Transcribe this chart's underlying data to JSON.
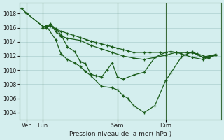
{
  "title": "Pression niveau de la mer( hPa )",
  "bg_color": "#d4eeee",
  "grid_color": "#b8d8d8",
  "line_color": "#1a5c1a",
  "ylim": [
    1003.0,
    1019.5
  ],
  "yticks": [
    1004,
    1006,
    1008,
    1010,
    1012,
    1014,
    1016,
    1018
  ],
  "x_tick_labels": [
    "Ven",
    "Lun",
    "Sam",
    "Dim"
  ],
  "x_tick_positions": [
    0.5,
    2.0,
    9.0,
    13.5
  ],
  "xlim": [
    -0.2,
    18.7
  ],
  "series_x": [
    [
      0.0,
      0.5,
      2.0,
      2.3,
      2.7,
      3.2,
      3.7,
      4.3,
      4.9,
      5.5,
      6.1,
      6.5,
      7.0,
      7.5,
      8.0,
      8.5,
      9.0,
      9.5,
      10.0,
      10.5,
      11.5,
      12.0,
      13.0,
      13.5,
      14.0,
      14.5,
      15.5,
      16.0,
      17.0,
      17.5,
      18.2
    ],
    [
      0.0,
      0.5,
      2.0,
      2.3,
      2.7,
      3.2,
      3.7,
      4.3,
      5.5,
      6.5,
      7.5,
      8.5,
      9.5,
      10.5,
      11.5,
      12.5,
      13.5,
      14.5,
      15.5,
      16.5,
      17.5,
      18.2
    ],
    [
      2.0,
      2.3,
      2.7,
      3.2,
      3.7,
      4.3,
      5.0,
      5.5,
      6.0,
      6.5,
      7.0,
      7.5,
      8.0,
      8.5,
      9.0,
      9.5,
      10.5,
      11.5,
      12.5,
      13.5,
      14.0,
      14.5,
      15.0,
      16.0,
      17.0,
      17.5,
      18.2
    ],
    [
      2.0,
      2.3,
      3.2,
      3.7,
      4.3,
      5.0,
      5.5,
      6.0,
      6.5,
      7.5,
      8.5,
      9.0,
      9.5,
      10.0,
      10.5,
      11.5,
      12.5,
      13.5,
      14.0,
      15.0,
      16.0,
      17.0,
      17.5,
      18.2
    ]
  ],
  "series_y": [
    [
      1018.7,
      1018.0,
      1016.2,
      1016.1,
      1016.3,
      1015.8,
      1015.5,
      1015.2,
      1014.9,
      1014.6,
      1014.3,
      1014.1,
      1013.9,
      1013.7,
      1013.5,
      1013.3,
      1013.1,
      1012.9,
      1012.7,
      1012.5,
      1012.5,
      1012.5,
      1012.5,
      1012.5,
      1012.6,
      1012.5,
      1012.5,
      1012.5,
      1011.8,
      1011.7,
      1012.1
    ],
    [
      1018.7,
      1018.0,
      1016.2,
      1016.0,
      1016.4,
      1015.5,
      1014.8,
      1014.5,
      1014.2,
      1013.5,
      1013.0,
      1012.5,
      1012.0,
      1011.7,
      1011.5,
      1011.8,
      1012.1,
      1012.5,
      1012.5,
      1012.3,
      1011.8,
      1012.2
    ],
    [
      1016.0,
      1016.2,
      1016.5,
      1015.9,
      1015.0,
      1013.3,
      1012.6,
      1011.2,
      1010.9,
      1009.4,
      1009.2,
      1009.0,
      1010.0,
      1011.0,
      1009.0,
      1008.7,
      1009.3,
      1009.7,
      1011.8,
      1012.5,
      1012.6,
      1012.5,
      1012.3,
      1011.8,
      1011.5,
      1011.8,
      1012.2
    ],
    [
      1016.0,
      1016.3,
      1014.3,
      1012.3,
      1011.5,
      1011.0,
      1010.5,
      1009.8,
      1009.2,
      1007.7,
      1007.5,
      1007.2,
      1006.4,
      1006.0,
      1005.0,
      1004.0,
      1005.0,
      1008.5,
      1009.6,
      1011.9,
      1012.6,
      1011.8,
      1012.0,
      1012.2
    ]
  ],
  "marker": "+",
  "markersize": 3.5,
  "linewidth": 0.9
}
